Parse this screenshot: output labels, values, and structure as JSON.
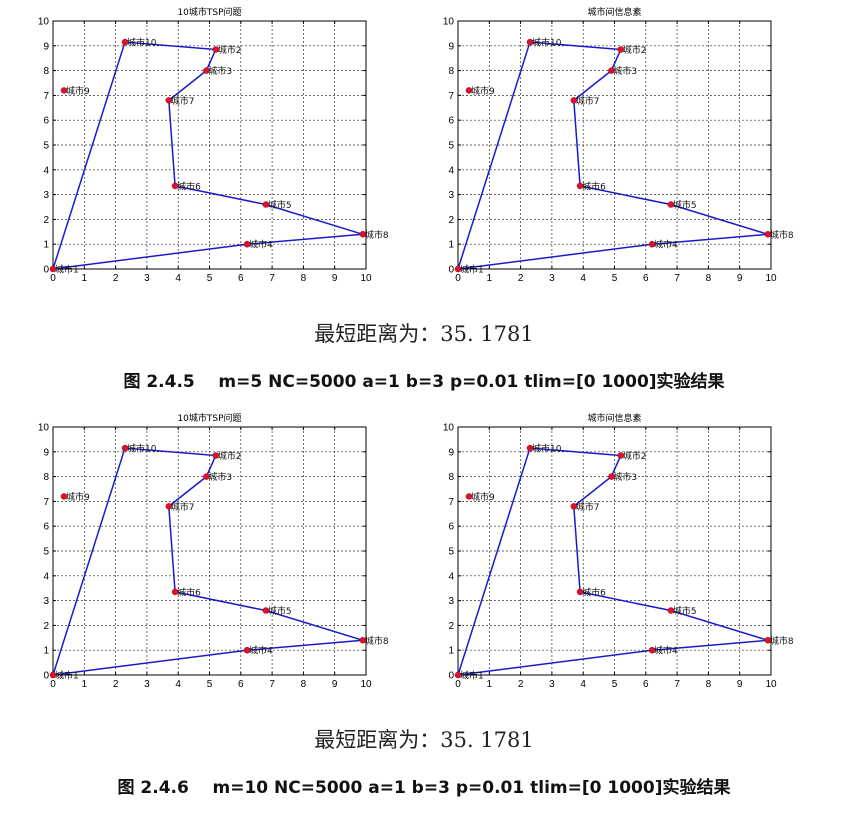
{
  "chart_data": [
    {
      "type": "line",
      "title": "10城市TSP问题",
      "xlim": [
        0,
        10
      ],
      "ylim": [
        0,
        10
      ],
      "xticks": [
        "0",
        "1",
        "2",
        "3",
        "4",
        "5",
        "6",
        "7",
        "8",
        "9",
        "10"
      ],
      "yticks": [
        "0",
        "1",
        "2",
        "3",
        "4",
        "5",
        "6",
        "7",
        "8",
        "9",
        "10"
      ],
      "grid": true,
      "cities": [
        {
          "label": "城市1",
          "x": 0.0,
          "y": 0.0
        },
        {
          "label": "城市2",
          "x": 5.2,
          "y": 8.85
        },
        {
          "label": "城市3",
          "x": 4.9,
          "y": 8.0
        },
        {
          "label": "城市4",
          "x": 6.2,
          "y": 1.0
        },
        {
          "label": "城市5",
          "x": 6.8,
          "y": 2.6
        },
        {
          "label": "城市6",
          "x": 3.9,
          "y": 3.35
        },
        {
          "label": "城市7",
          "x": 3.7,
          "y": 6.8
        },
        {
          "label": "城市8",
          "x": 9.9,
          "y": 1.4
        },
        {
          "label": "城市9",
          "x": 0.35,
          "y": 7.2
        },
        {
          "label": "城市10",
          "x": 2.3,
          "y": 9.15
        }
      ],
      "route": [
        1,
        10,
        2,
        3,
        7,
        6,
        5,
        8,
        4,
        1
      ]
    },
    {
      "type": "line",
      "title": "城市间信息素",
      "xlim": [
        0,
        10
      ],
      "ylim": [
        0,
        10
      ],
      "xticks": [
        "0",
        "1",
        "2",
        "3",
        "4",
        "5",
        "6",
        "7",
        "8",
        "9",
        "10"
      ],
      "yticks": [
        "0",
        "1",
        "2",
        "3",
        "4",
        "5",
        "6",
        "7",
        "8",
        "9",
        "10"
      ],
      "grid": true,
      "cities": [
        {
          "label": "城市1",
          "x": 0.0,
          "y": 0.0
        },
        {
          "label": "城市2",
          "x": 5.2,
          "y": 8.85
        },
        {
          "label": "城市3",
          "x": 4.9,
          "y": 8.0
        },
        {
          "label": "城市4",
          "x": 6.2,
          "y": 1.0
        },
        {
          "label": "城市5",
          "x": 6.8,
          "y": 2.6
        },
        {
          "label": "城市6",
          "x": 3.9,
          "y": 3.35
        },
        {
          "label": "城市7",
          "x": 3.7,
          "y": 6.8
        },
        {
          "label": "城市8",
          "x": 9.9,
          "y": 1.4
        },
        {
          "label": "城市9",
          "x": 0.35,
          "y": 7.2
        },
        {
          "label": "城市10",
          "x": 2.3,
          "y": 9.15
        }
      ],
      "route": [
        1,
        10,
        2,
        3,
        7,
        6,
        5,
        8,
        4,
        1
      ]
    },
    {
      "type": "line",
      "title": "10城市TSP问题",
      "xlim": [
        0,
        10
      ],
      "ylim": [
        0,
        10
      ],
      "xticks": [
        "0",
        "1",
        "2",
        "3",
        "4",
        "5",
        "6",
        "7",
        "8",
        "9",
        "10"
      ],
      "yticks": [
        "0",
        "1",
        "2",
        "3",
        "4",
        "5",
        "6",
        "7",
        "8",
        "9",
        "10"
      ],
      "grid": true,
      "cities": [
        {
          "label": "城市1",
          "x": 0.0,
          "y": 0.0
        },
        {
          "label": "城市2",
          "x": 5.2,
          "y": 8.85
        },
        {
          "label": "城市3",
          "x": 4.9,
          "y": 8.0
        },
        {
          "label": "城市4",
          "x": 6.2,
          "y": 1.0
        },
        {
          "label": "城市5",
          "x": 6.8,
          "y": 2.6
        },
        {
          "label": "城市6",
          "x": 3.9,
          "y": 3.35
        },
        {
          "label": "城市7",
          "x": 3.7,
          "y": 6.8
        },
        {
          "label": "城市8",
          "x": 9.9,
          "y": 1.4
        },
        {
          "label": "城市9",
          "x": 0.35,
          "y": 7.2
        },
        {
          "label": "城市10",
          "x": 2.3,
          "y": 9.15
        }
      ],
      "route": [
        1,
        10,
        2,
        3,
        7,
        6,
        5,
        8,
        4,
        1
      ]
    },
    {
      "type": "line",
      "title": "城市间信息素",
      "xlim": [
        0,
        10
      ],
      "ylim": [
        0,
        10
      ],
      "xticks": [
        "0",
        "1",
        "2",
        "3",
        "4",
        "5",
        "6",
        "7",
        "8",
        "9",
        "10"
      ],
      "yticks": [
        "0",
        "1",
        "2",
        "3",
        "4",
        "5",
        "6",
        "7",
        "8",
        "9",
        "10"
      ],
      "grid": true,
      "cities": [
        {
          "label": "城市1",
          "x": 0.0,
          "y": 0.0
        },
        {
          "label": "城市2",
          "x": 5.2,
          "y": 8.85
        },
        {
          "label": "城市3",
          "x": 4.9,
          "y": 8.0
        },
        {
          "label": "城市4",
          "x": 6.2,
          "y": 1.0
        },
        {
          "label": "城市5",
          "x": 6.8,
          "y": 2.6
        },
        {
          "label": "城市6",
          "x": 3.9,
          "y": 3.35
        },
        {
          "label": "城市7",
          "x": 3.7,
          "y": 6.8
        },
        {
          "label": "城市8",
          "x": 9.9,
          "y": 1.4
        },
        {
          "label": "城市9",
          "x": 0.35,
          "y": 7.2
        },
        {
          "label": "城市10",
          "x": 2.3,
          "y": 9.15
        }
      ],
      "route": [
        1,
        10,
        2,
        3,
        7,
        6,
        5,
        8,
        4,
        1
      ]
    }
  ],
  "colors": {
    "route": "#1a1acc",
    "marker": "#e0102a",
    "grid": "#333333"
  },
  "section1": {
    "result": "最短距离为：35. 1781",
    "caption": "图 2.4.5    m=5 NC=5000 a=1 b=3 p=0.01 tlim=[0 1000]实验结果"
  },
  "section2": {
    "result": "最短距离为：35. 1781",
    "caption": "图 2.4.6    m=10 NC=5000 a=1 b=3 p=0.01 tlim=[0 1000]实验结果"
  }
}
